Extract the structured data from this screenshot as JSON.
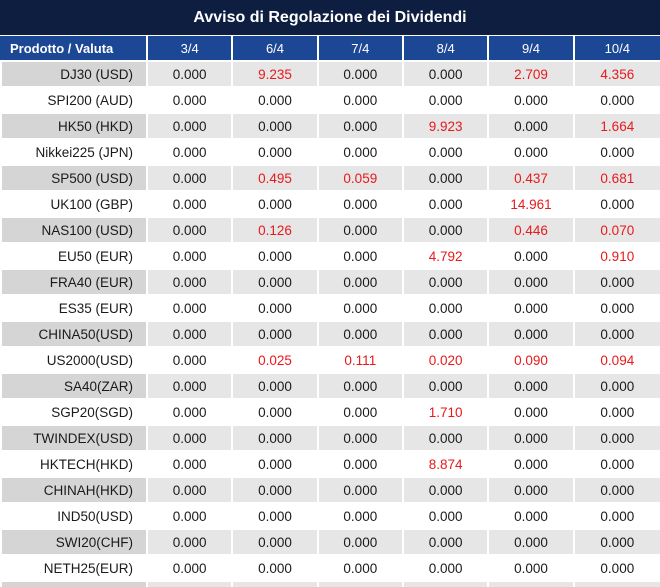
{
  "title": "Avviso di Regolazione dei Dividendi",
  "table": {
    "product_header": "Prodotto / Valuta",
    "date_headers": [
      "3/4",
      "6/4",
      "7/4",
      "8/4",
      "9/4",
      "10/4"
    ],
    "rows": [
      {
        "product": "DJ30 (USD)",
        "values": [
          {
            "v": "0.000",
            "red": false
          },
          {
            "v": "9.235",
            "red": true
          },
          {
            "v": "0.000",
            "red": false
          },
          {
            "v": "0.000",
            "red": false
          },
          {
            "v": "2.709",
            "red": true
          },
          {
            "v": "4.356",
            "red": true
          }
        ]
      },
      {
        "product": "SPI200 (AUD)",
        "values": [
          {
            "v": "0.000",
            "red": false
          },
          {
            "v": "0.000",
            "red": false
          },
          {
            "v": "0.000",
            "red": false
          },
          {
            "v": "0.000",
            "red": false
          },
          {
            "v": "0.000",
            "red": false
          },
          {
            "v": "0.000",
            "red": false
          }
        ]
      },
      {
        "product": "HK50 (HKD)",
        "values": [
          {
            "v": "0.000",
            "red": false
          },
          {
            "v": "0.000",
            "red": false
          },
          {
            "v": "0.000",
            "red": false
          },
          {
            "v": "9.923",
            "red": true
          },
          {
            "v": "0.000",
            "red": false
          },
          {
            "v": "1.664",
            "red": true
          }
        ]
      },
      {
        "product": "Nikkei225 (JPN)",
        "values": [
          {
            "v": "0.000",
            "red": false
          },
          {
            "v": "0.000",
            "red": false
          },
          {
            "v": "0.000",
            "red": false
          },
          {
            "v": "0.000",
            "red": false
          },
          {
            "v": "0.000",
            "red": false
          },
          {
            "v": "0.000",
            "red": false
          }
        ]
      },
      {
        "product": "SP500 (USD)",
        "values": [
          {
            "v": "0.000",
            "red": false
          },
          {
            "v": "0.495",
            "red": true
          },
          {
            "v": "0.059",
            "red": true
          },
          {
            "v": "0.000",
            "red": false
          },
          {
            "v": "0.437",
            "red": true
          },
          {
            "v": "0.681",
            "red": true
          }
        ]
      },
      {
        "product": "UK100 (GBP)",
        "values": [
          {
            "v": "0.000",
            "red": false
          },
          {
            "v": "0.000",
            "red": false
          },
          {
            "v": "0.000",
            "red": false
          },
          {
            "v": "0.000",
            "red": false
          },
          {
            "v": "14.961",
            "red": true
          },
          {
            "v": "0.000",
            "red": false
          }
        ]
      },
      {
        "product": "NAS100 (USD)",
        "values": [
          {
            "v": "0.000",
            "red": false
          },
          {
            "v": "0.126",
            "red": true
          },
          {
            "v": "0.000",
            "red": false
          },
          {
            "v": "0.000",
            "red": false
          },
          {
            "v": "0.446",
            "red": true
          },
          {
            "v": "0.070",
            "red": true
          }
        ]
      },
      {
        "product": "EU50 (EUR)",
        "values": [
          {
            "v": "0.000",
            "red": false
          },
          {
            "v": "0.000",
            "red": false
          },
          {
            "v": "0.000",
            "red": false
          },
          {
            "v": "4.792",
            "red": true
          },
          {
            "v": "0.000",
            "red": false
          },
          {
            "v": "0.910",
            "red": true
          }
        ]
      },
      {
        "product": "FRA40 (EUR)",
        "values": [
          {
            "v": "0.000",
            "red": false
          },
          {
            "v": "0.000",
            "red": false
          },
          {
            "v": "0.000",
            "red": false
          },
          {
            "v": "0.000",
            "red": false
          },
          {
            "v": "0.000",
            "red": false
          },
          {
            "v": "0.000",
            "red": false
          }
        ]
      },
      {
        "product": "ES35 (EUR)",
        "values": [
          {
            "v": "0.000",
            "red": false
          },
          {
            "v": "0.000",
            "red": false
          },
          {
            "v": "0.000",
            "red": false
          },
          {
            "v": "0.000",
            "red": false
          },
          {
            "v": "0.000",
            "red": false
          },
          {
            "v": "0.000",
            "red": false
          }
        ]
      },
      {
        "product": "CHINA50(USD)",
        "values": [
          {
            "v": "0.000",
            "red": false
          },
          {
            "v": "0.000",
            "red": false
          },
          {
            "v": "0.000",
            "red": false
          },
          {
            "v": "0.000",
            "red": false
          },
          {
            "v": "0.000",
            "red": false
          },
          {
            "v": "0.000",
            "red": false
          }
        ]
      },
      {
        "product": "US2000(USD)",
        "values": [
          {
            "v": "0.000",
            "red": false
          },
          {
            "v": "0.025",
            "red": true
          },
          {
            "v": "0.111",
            "red": true
          },
          {
            "v": "0.020",
            "red": true
          },
          {
            "v": "0.090",
            "red": true
          },
          {
            "v": "0.094",
            "red": true
          }
        ]
      },
      {
        "product": "SA40(ZAR)",
        "values": [
          {
            "v": "0.000",
            "red": false
          },
          {
            "v": "0.000",
            "red": false
          },
          {
            "v": "0.000",
            "red": false
          },
          {
            "v": "0.000",
            "red": false
          },
          {
            "v": "0.000",
            "red": false
          },
          {
            "v": "0.000",
            "red": false
          }
        ]
      },
      {
        "product": "SGP20(SGD)",
        "values": [
          {
            "v": "0.000",
            "red": false
          },
          {
            "v": "0.000",
            "red": false
          },
          {
            "v": "0.000",
            "red": false
          },
          {
            "v": "1.710",
            "red": true
          },
          {
            "v": "0.000",
            "red": false
          },
          {
            "v": "0.000",
            "red": false
          }
        ]
      },
      {
        "product": "TWINDEX(USD)",
        "values": [
          {
            "v": "0.000",
            "red": false
          },
          {
            "v": "0.000",
            "red": false
          },
          {
            "v": "0.000",
            "red": false
          },
          {
            "v": "0.000",
            "red": false
          },
          {
            "v": "0.000",
            "red": false
          },
          {
            "v": "0.000",
            "red": false
          }
        ]
      },
      {
        "product": "HKTECH(HKD)",
        "values": [
          {
            "v": "0.000",
            "red": false
          },
          {
            "v": "0.000",
            "red": false
          },
          {
            "v": "0.000",
            "red": false
          },
          {
            "v": "8.874",
            "red": true
          },
          {
            "v": "0.000",
            "red": false
          },
          {
            "v": "0.000",
            "red": false
          }
        ]
      },
      {
        "product": "CHINAH(HKD)",
        "values": [
          {
            "v": "0.000",
            "red": false
          },
          {
            "v": "0.000",
            "red": false
          },
          {
            "v": "0.000",
            "red": false
          },
          {
            "v": "0.000",
            "red": false
          },
          {
            "v": "0.000",
            "red": false
          },
          {
            "v": "0.000",
            "red": false
          }
        ]
      },
      {
        "product": "IND50(USD)",
        "values": [
          {
            "v": "0.000",
            "red": false
          },
          {
            "v": "0.000",
            "red": false
          },
          {
            "v": "0.000",
            "red": false
          },
          {
            "v": "0.000",
            "red": false
          },
          {
            "v": "0.000",
            "red": false
          },
          {
            "v": "0.000",
            "red": false
          }
        ]
      },
      {
        "product": "SWI20(CHF)",
        "values": [
          {
            "v": "0.000",
            "red": false
          },
          {
            "v": "0.000",
            "red": false
          },
          {
            "v": "0.000",
            "red": false
          },
          {
            "v": "0.000",
            "red": false
          },
          {
            "v": "0.000",
            "red": false
          },
          {
            "v": "0.000",
            "red": false
          }
        ]
      },
      {
        "product": "NETH25(EUR)",
        "values": [
          {
            "v": "0.000",
            "red": false
          },
          {
            "v": "0.000",
            "red": false
          },
          {
            "v": "0.000",
            "red": false
          },
          {
            "v": "0.000",
            "red": false
          },
          {
            "v": "0.000",
            "red": false
          },
          {
            "v": "0.000",
            "red": false
          }
        ]
      }
    ]
  },
  "colors": {
    "title_bg": "#0d1e40",
    "header_bg": "#1c4795",
    "row_stripe": "#e6e6e6",
    "product_stripe": "#d5d5d5",
    "value_red": "#e8191c",
    "text_dark": "#1a1a1a",
    "separator": "#ffffff"
  }
}
